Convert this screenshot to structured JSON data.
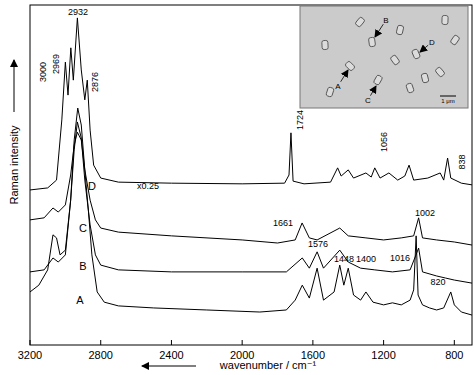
{
  "chart_data": {
    "type": "line",
    "x_label": "wavenumber / cm⁻¹",
    "y_label": "Raman intensity",
    "xlim": [
      3200,
      700
    ],
    "ylim": [
      0,
      100
    ],
    "xticks": [
      3200,
      2800,
      2400,
      2000,
      1600,
      1200,
      800
    ],
    "tick_labels": "x",
    "grid": false,
    "series": [
      {
        "name": "A",
        "color": "#000000",
        "x": [
          3200,
          3150,
          3100,
          3070,
          3050,
          3030,
          3000,
          2970,
          2950,
          2930,
          2910,
          2890,
          2870,
          2850,
          2820,
          2780,
          2700,
          2500,
          2200,
          1900,
          1750,
          1700,
          1660,
          1620,
          1576,
          1540,
          1480,
          1448,
          1425,
          1400,
          1370,
          1330,
          1300,
          1260,
          1200,
          1150,
          1100,
          1050,
          1030,
          1016,
          1005,
          980,
          940,
          900,
          860,
          820,
          800,
          760,
          700
        ],
        "values": [
          15.6,
          17.6,
          22.1,
          32.4,
          31.5,
          26.5,
          27.9,
          42.6,
          60.3,
          69.7,
          64.7,
          51.5,
          39.7,
          26.5,
          15.6,
          12.6,
          11.5,
          10.9,
          10.3,
          9.7,
          10.3,
          13.2,
          17.6,
          13.8,
          22.6,
          13.2,
          15.6,
          23.5,
          17.6,
          22.6,
          14.7,
          13.2,
          15.6,
          12.6,
          11.8,
          12.4,
          11.8,
          13.2,
          16.2,
          32.1,
          14.7,
          11.8,
          10.9,
          10.3,
          10.9,
          15.6,
          11.8,
          9.7,
          8.8
        ]
      },
      {
        "name": "B",
        "color": "#000000",
        "x": [
          3200,
          3120,
          3070,
          3040,
          3000,
          2970,
          2950,
          2932,
          2910,
          2890,
          2860,
          2830,
          2800,
          2700,
          2400,
          2000,
          1750,
          1660,
          1620,
          1576,
          1540,
          1448,
          1400,
          1330,
          1250,
          1150,
          1050,
          1002,
          980,
          900,
          850,
          800,
          700
        ],
        "values": [
          21.5,
          22.1,
          25.6,
          24.4,
          26.5,
          42.6,
          57.4,
          65.6,
          60.9,
          48.5,
          35.3,
          26.5,
          23.5,
          22.1,
          21.5,
          21.5,
          21.5,
          25.6,
          22.6,
          27.4,
          22.6,
          27.9,
          24.4,
          22.6,
          22.1,
          21.5,
          22.1,
          28.5,
          21.5,
          20.3,
          19.7,
          19.1,
          18.2
        ]
      },
      {
        "name": "C",
        "color": "#000000",
        "x": [
          3200,
          3120,
          3070,
          3040,
          3000,
          2970,
          2950,
          2932,
          2910,
          2890,
          2860,
          2830,
          2800,
          2700,
          2400,
          2000,
          1800,
          1700,
          1661,
          1620,
          1576,
          1448,
          1400,
          1300,
          1200,
          1100,
          1030,
          1002,
          980,
          900,
          800,
          700
        ],
        "values": [
          36.8,
          37.4,
          40.3,
          39.1,
          41.2,
          50.0,
          58.8,
          62.6,
          60.3,
          51.5,
          42.6,
          36.8,
          34.4,
          33.2,
          32.1,
          30.9,
          30.0,
          30.9,
          35.9,
          31.5,
          30.9,
          34.4,
          32.1,
          31.5,
          30.9,
          31.5,
          32.1,
          37.4,
          31.5,
          30.9,
          30.3,
          29.4
        ]
      },
      {
        "name": "D",
        "color": "#000000",
        "x": [
          3200,
          3100,
          3050,
          3020,
          3000,
          2985,
          2969,
          2955,
          2932,
          2910,
          2890,
          2876,
          2860,
          2840,
          2800,
          2700,
          2400,
          2000,
          1760,
          1735,
          1724,
          1712,
          1650,
          1500,
          1460,
          1440,
          1400,
          1370,
          1300,
          1270,
          1250,
          1220,
          1170,
          1120,
          1080,
          1056,
          1030,
          950,
          880,
          860,
          838,
          820,
          760,
          700
        ],
        "values": [
          45.6,
          46.2,
          48.5,
          66.2,
          83.2,
          73.5,
          87.4,
          77.9,
          96.2,
          80.9,
          72.1,
          77.9,
          63.2,
          52.9,
          49.1,
          47.9,
          47.6,
          47.4,
          47.6,
          50.0,
          62.4,
          48.2,
          47.4,
          47.9,
          52.1,
          49.7,
          51.5,
          49.1,
          50.6,
          49.4,
          52.1,
          49.1,
          50.6,
          48.5,
          49.7,
          52.9,
          48.5,
          49.1,
          50.6,
          48.5,
          55.0,
          49.1,
          47.6,
          47.1
        ]
      }
    ],
    "annotations": [
      "3000",
      "2969",
      "2932",
      "2876",
      "x0.25",
      "1724",
      "1056",
      "838",
      "1661",
      "1002",
      "1576",
      "1448",
      "1400",
      "1016",
      "820"
    ],
    "inset": {
      "labels": [
        "A",
        "B",
        "C",
        "D"
      ],
      "scale_bar": "1 μm"
    }
  }
}
